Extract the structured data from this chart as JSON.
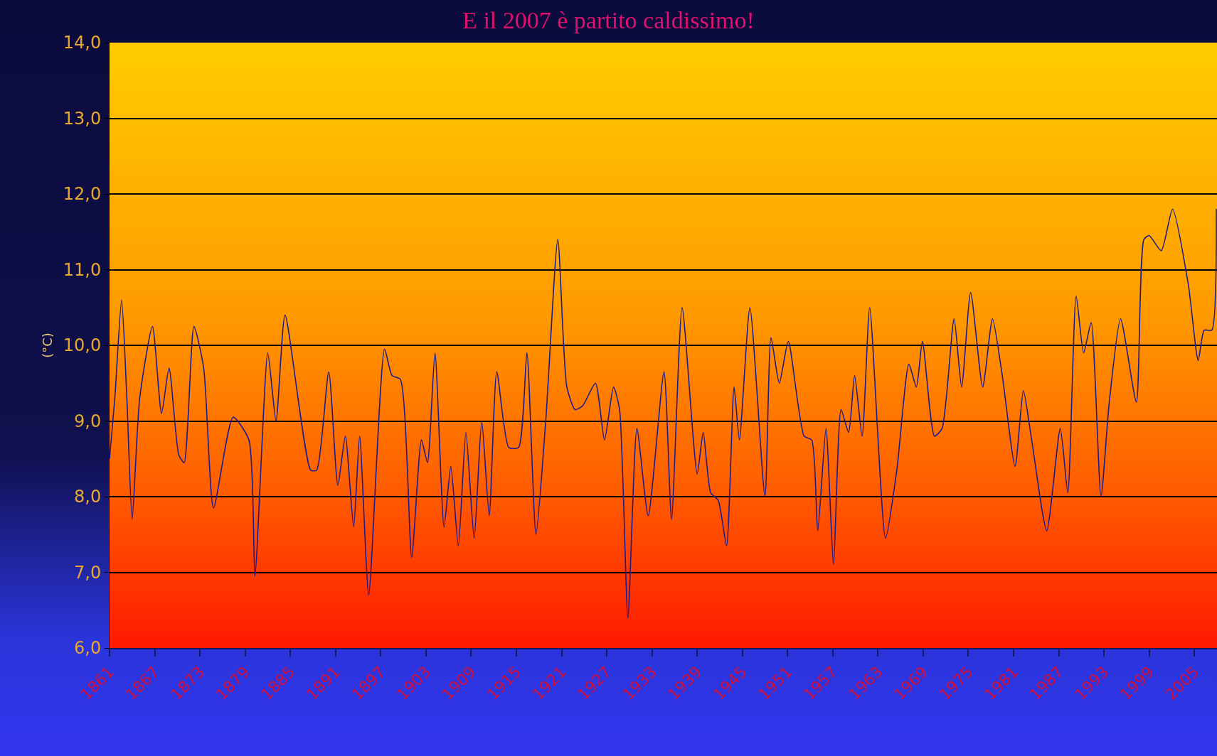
{
  "chart_data": {
    "type": "line",
    "title": "E il 2007 è partito caldissimo!",
    "ylabel": "(°C)",
    "x": [
      1861.0,
      1861.7,
      1862.6,
      1863.3,
      1864.0,
      1865.0,
      1866.7,
      1867.9,
      1868.9,
      1870.2,
      1870.9,
      1872.2,
      1873.5,
      1874.8,
      1877.4,
      1879.5,
      1880.3,
      1882.0,
      1883.1,
      1884.3,
      1887.7,
      1888.5,
      1890.1,
      1891.3,
      1892.3,
      1893.4,
      1894.2,
      1895.4,
      1897.5,
      1898.5,
      1899.6,
      1901.1,
      1902.4,
      1903.2,
      1904.2,
      1905.4,
      1906.3,
      1907.3,
      1908.3,
      1909.4,
      1910.4,
      1911.4,
      1912.4,
      1914.0,
      1915.3,
      1916.4,
      1917.6,
      1918.9,
      1920.5,
      1921.7,
      1922.8,
      1923.8,
      1925.5,
      1926.7,
      1927.9,
      1928.7,
      1929.8,
      1931.0,
      1932.5,
      1934.6,
      1935.6,
      1937.0,
      1939.0,
      1939.8,
      1940.8,
      1941.8,
      1942.9,
      1943.9,
      1944.6,
      1946.0,
      1948.0,
      1948.8,
      1949.9,
      1951.1,
      1953.2,
      1954.2,
      1955.0,
      1956.1,
      1957.1,
      1958.1,
      1959.1,
      1959.9,
      1960.9,
      1961.9,
      1964.0,
      1965.5,
      1967.1,
      1968.1,
      1968.9,
      1970.5,
      1971.5,
      1973.1,
      1974.1,
      1975.3,
      1976.9,
      1978.2,
      1979.5,
      1981.2,
      1982.3,
      1983.4,
      1985.4,
      1987.2,
      1988.2,
      1989.3,
      1990.3,
      1991.3,
      1992.6,
      1993.7,
      1995.2,
      1997.3,
      1998.3,
      1999.0,
      2000.6,
      2002.1,
      2004.2,
      2005.5,
      2006.3,
      2007.3,
      2007.9
    ],
    "series": [
      {
        "color": "#1c1c8c",
        "values": [
          8.5,
          9.3,
          10.6,
          9.3,
          7.7,
          9.3,
          10.25,
          9.1,
          9.7,
          8.55,
          8.45,
          10.25,
          9.7,
          7.85,
          9.05,
          8.75,
          6.95,
          9.9,
          9.0,
          10.4,
          8.35,
          8.35,
          9.65,
          8.15,
          8.8,
          7.6,
          8.8,
          6.7,
          9.95,
          9.6,
          9.55,
          7.2,
          8.75,
          8.45,
          9.9,
          7.6,
          8.4,
          7.35,
          8.85,
          7.45,
          9.0,
          7.75,
          9.65,
          8.65,
          8.65,
          9.9,
          7.5,
          9.0,
          11.4,
          9.45,
          9.15,
          9.2,
          9.5,
          8.75,
          9.45,
          9.15,
          6.4,
          8.9,
          7.75,
          9.65,
          7.7,
          10.5,
          8.3,
          8.85,
          8.05,
          7.95,
          7.35,
          9.45,
          8.75,
          10.5,
          8.0,
          10.1,
          9.5,
          10.05,
          8.8,
          8.75,
          7.55,
          8.9,
          7.1,
          9.15,
          8.85,
          9.6,
          8.8,
          10.5,
          7.45,
          8.35,
          9.75,
          9.45,
          10.05,
          8.8,
          8.9,
          10.35,
          9.45,
          10.7,
          9.45,
          10.35,
          9.6,
          8.4,
          9.4,
          8.75,
          7.55,
          8.9,
          8.05,
          10.65,
          9.9,
          10.3,
          8.0,
          9.25,
          10.35,
          9.25,
          11.4,
          11.45,
          11.25,
          11.8,
          10.8,
          9.8,
          10.2,
          10.2,
          11.8
        ]
      }
    ],
    "xlim": [
      1861,
      2008
    ],
    "xticks": [
      1861,
      1867,
      1873,
      1879,
      1885,
      1891,
      1897,
      1903,
      1909,
      1915,
      1921,
      1927,
      1933,
      1939,
      1945,
      1951,
      1957,
      1963,
      1969,
      1975,
      1981,
      1987,
      1993,
      1999,
      2005
    ],
    "ylim": [
      6,
      14
    ],
    "yticks": [
      {
        "value": 6,
        "label": "6,0"
      },
      {
        "value": 7,
        "label": "7,0"
      },
      {
        "value": 8,
        "label": "8,0"
      },
      {
        "value": 9,
        "label": "9,0"
      },
      {
        "value": 10,
        "label": "10,0"
      },
      {
        "value": 11,
        "label": "11,0"
      },
      {
        "value": 12,
        "label": "12,0"
      },
      {
        "value": 13,
        "label": "13,0"
      },
      {
        "value": 14,
        "label": "14,0"
      }
    ],
    "grid": "y",
    "marker": "none",
    "line_style": "solid"
  }
}
